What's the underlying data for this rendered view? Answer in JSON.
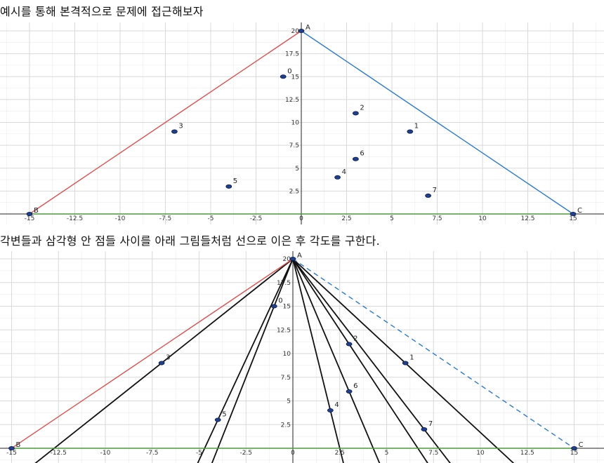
{
  "captions": {
    "top": "예시를 통해 본격적으로 문제에 접근해보자",
    "bottom": "각변들과 삼각형 안 점들 사이를 아래 그림들처럼 선으로 이은 후 각도를 구한다."
  },
  "colors": {
    "grid": "#d9d9d9",
    "axis": "#222222",
    "edge_AB": "#e05050",
    "edge_AC": "#2a7ad0",
    "edge_BC": "#4a9a3a",
    "point_fill": "#1f3f8f",
    "ray": "#111111"
  },
  "diagram": {
    "x_ticks": [
      "-15",
      "-12.5",
      "-10",
      "-7.5",
      "-5",
      "-2.5",
      "0",
      "2.5",
      "5",
      "7.5",
      "10",
      "12.5",
      "15"
    ],
    "y_ticks": [
      "2.5",
      "5",
      "7.5",
      "10",
      "12.5",
      "15",
      "17.5",
      "20"
    ],
    "vertices": [
      {
        "label": "A",
        "x": 0,
        "y": 20
      },
      {
        "label": "B",
        "x": -15,
        "y": 0
      },
      {
        "label": "C",
        "x": 15,
        "y": 0
      }
    ],
    "points": [
      {
        "label": "0",
        "x": -1,
        "y": 15
      },
      {
        "label": "1",
        "x": 6,
        "y": 9
      },
      {
        "label": "2",
        "x": 3,
        "y": 11
      },
      {
        "label": "3",
        "x": -7,
        "y": 9
      },
      {
        "label": "4",
        "x": 2,
        "y": 4
      },
      {
        "label": "5",
        "x": -4,
        "y": 3
      },
      {
        "label": "6",
        "x": 3,
        "y": 6
      },
      {
        "label": "7",
        "x": 7,
        "y": 2
      }
    ]
  }
}
